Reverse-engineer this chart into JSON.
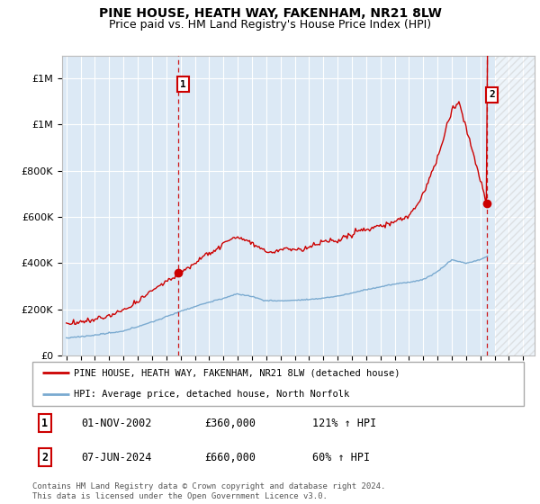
{
  "title": "PINE HOUSE, HEATH WAY, FAKENHAM, NR21 8LW",
  "subtitle": "Price paid vs. HM Land Registry's House Price Index (HPI)",
  "ylabel_ticks": [
    0,
    200000,
    400000,
    600000,
    800000,
    1000000,
    1200000
  ],
  "ylim": [
    0,
    1300000
  ],
  "xlim_start": 1994.7,
  "xlim_end": 2027.8,
  "background_color": "#dce9f5",
  "hatch_start": 2025.0,
  "transaction1_x": 2002.83,
  "transaction1_y": 360000,
  "transaction2_x": 2024.44,
  "transaction2_y": 660000,
  "legend_entries": [
    "PINE HOUSE, HEATH WAY, FAKENHAM, NR21 8LW (detached house)",
    "HPI: Average price, detached house, North Norfolk"
  ],
  "table_entries": [
    {
      "num": "1",
      "date": "01-NOV-2002",
      "price": "£360,000",
      "hpi": "121% ↑ HPI"
    },
    {
      "num": "2",
      "date": "07-JUN-2024",
      "price": "£660,000",
      "hpi": "60% ↑ HPI"
    }
  ],
  "footer": "Contains HM Land Registry data © Crown copyright and database right 2024.\nThis data is licensed under the Open Government Licence v3.0.",
  "red_color": "#cc0000",
  "blue_color": "#7aaad0",
  "marker_box_color": "#cc0000",
  "title_fontsize": 10,
  "subtitle_fontsize": 9
}
